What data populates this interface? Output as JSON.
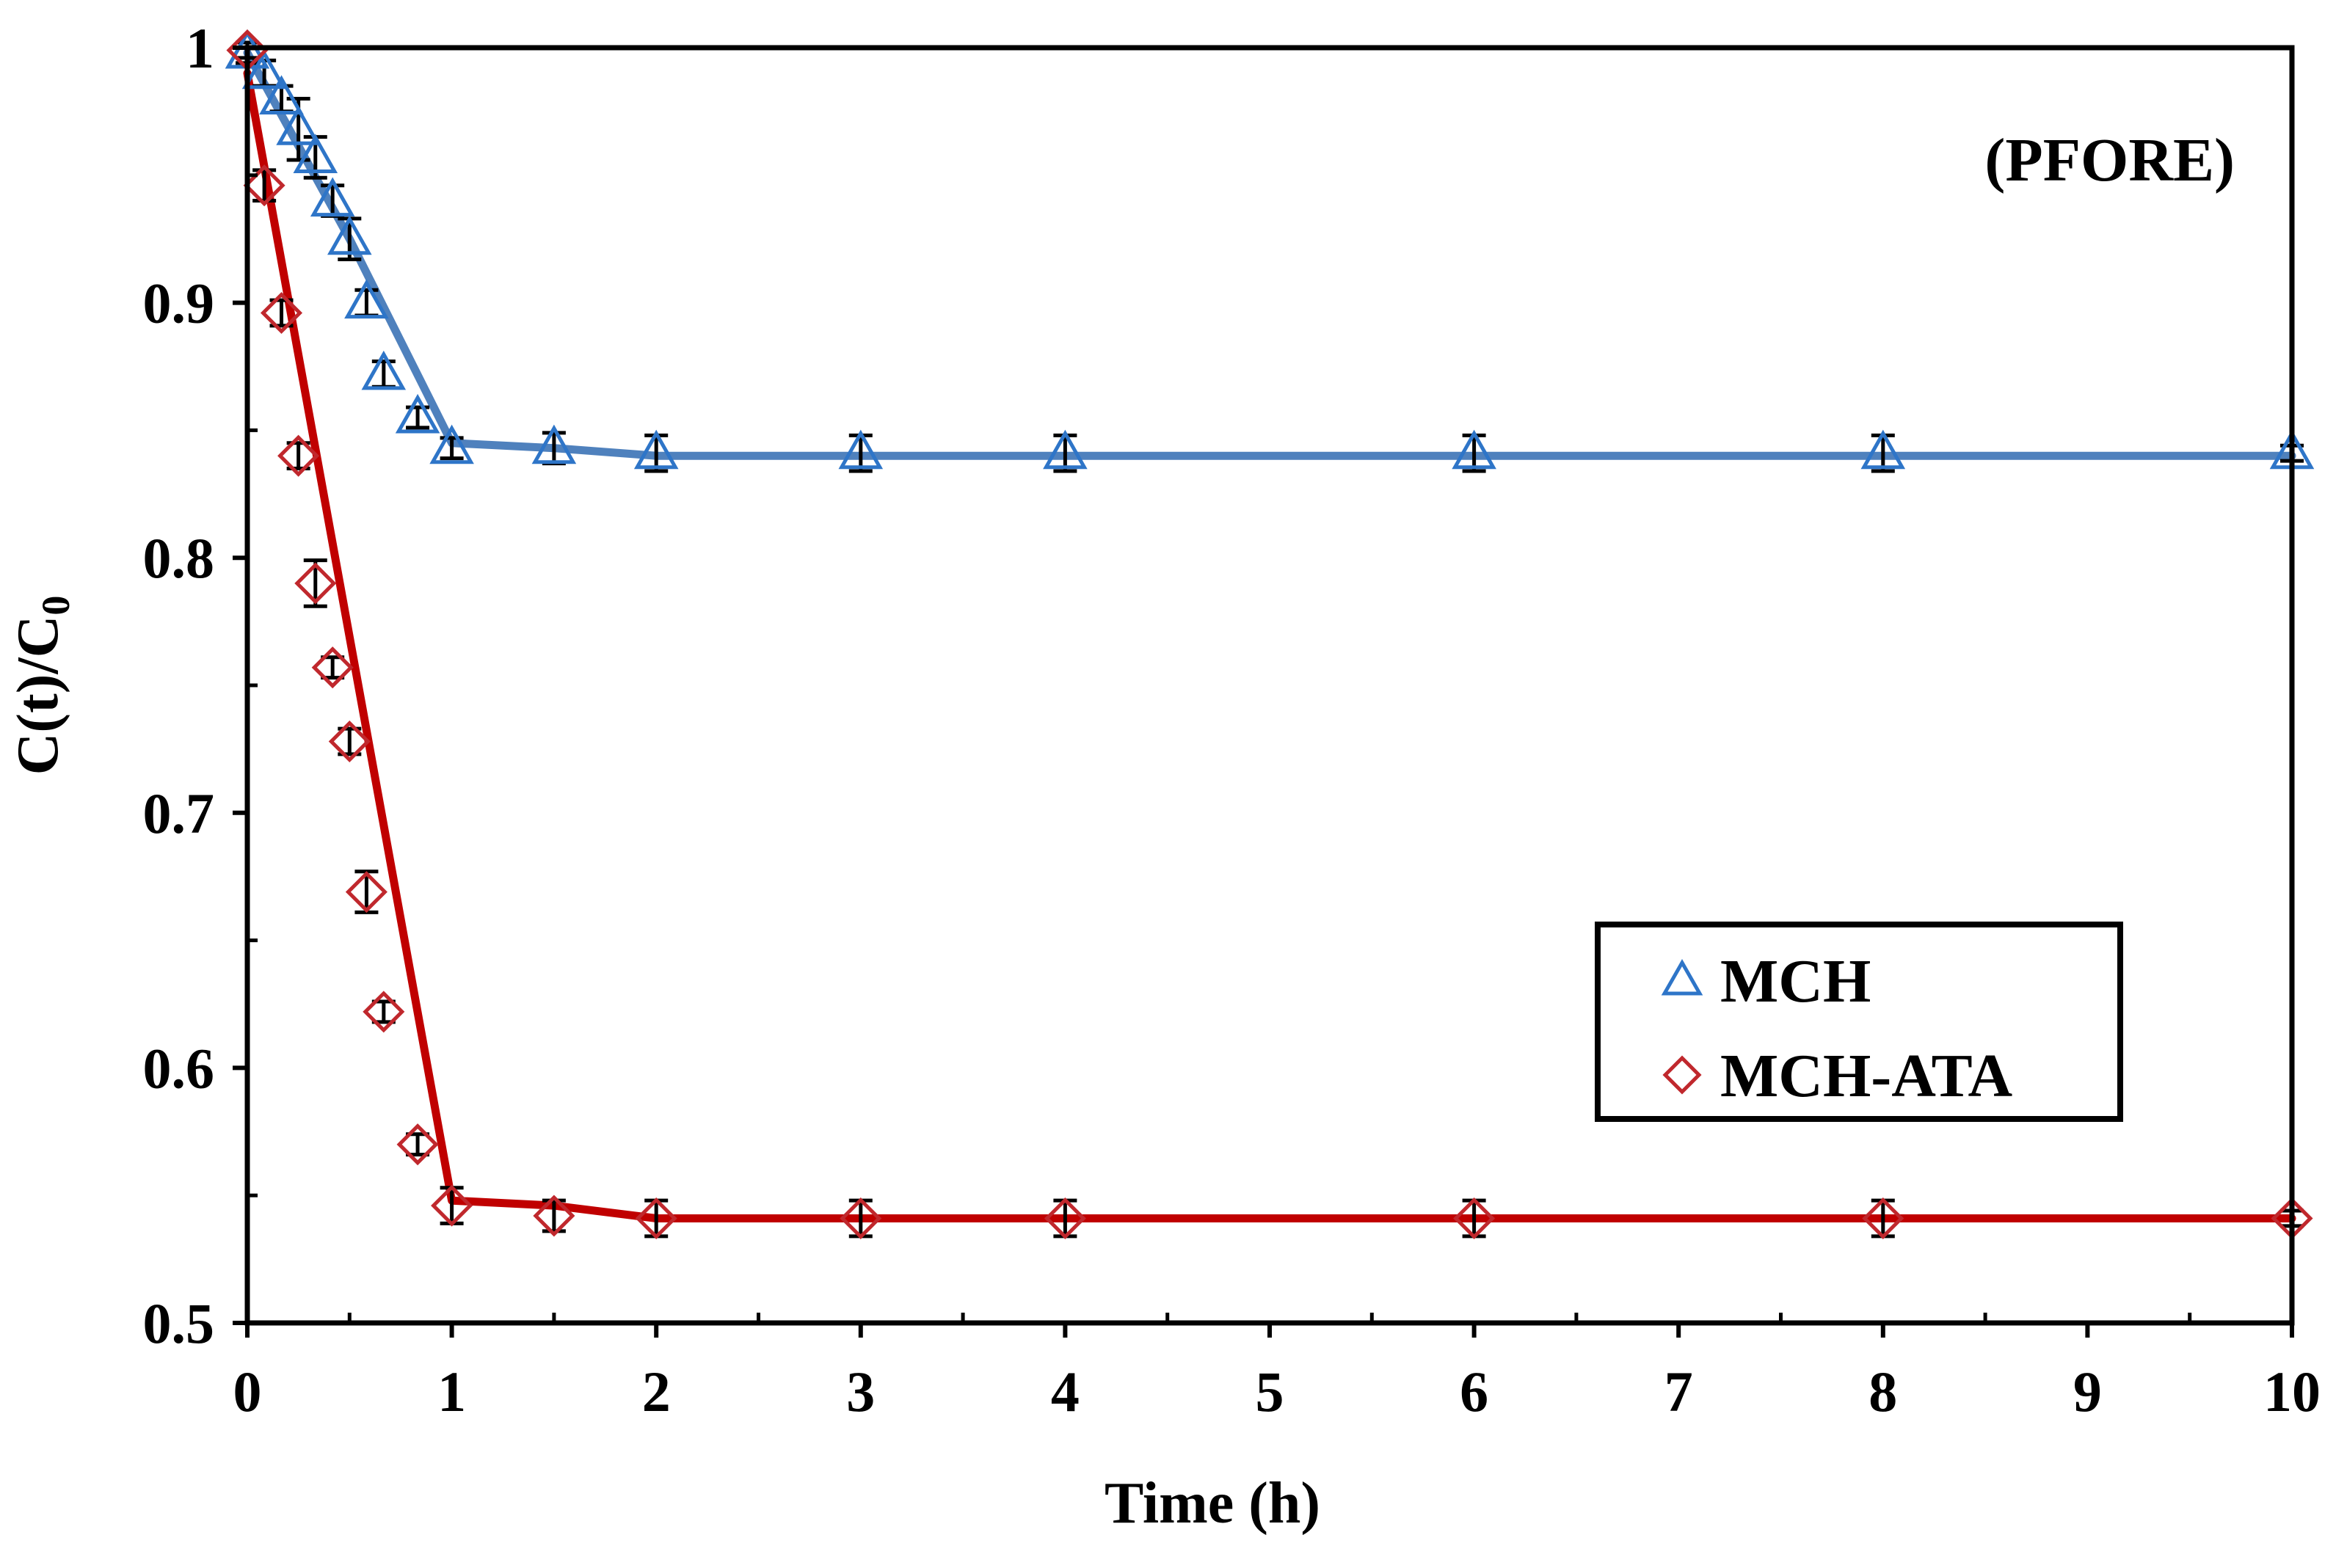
{
  "chart_data": {
    "type": "line",
    "title": "",
    "annotation": "(PFORE)",
    "xlabel": "Time (h)",
    "ylabel_main": "C(t)/C",
    "ylabel_sub": "0",
    "xlim": [
      0,
      10
    ],
    "ylim": [
      0.5,
      1
    ],
    "x_ticks": [
      0,
      1,
      2,
      3,
      4,
      5,
      6,
      7,
      8,
      9,
      10
    ],
    "x_tick_labels": [
      "0",
      "1",
      "2",
      "3",
      "4",
      "5",
      "6",
      "7",
      "8",
      "9",
      "10"
    ],
    "y_ticks": [
      0.5,
      0.6,
      0.7,
      0.8,
      0.9,
      1.0
    ],
    "y_tick_labels": [
      "0.5",
      "0.6",
      "0.7",
      "0.8",
      "0.9",
      "1"
    ],
    "grid": false,
    "legend_position": "right-middle",
    "series": [
      {
        "name": "MCH",
        "marker": "triangle",
        "color": "#2e75c8",
        "line_color": "#4f81bd",
        "x": [
          0,
          0.083,
          0.167,
          0.25,
          0.333,
          0.417,
          0.5,
          0.583,
          0.667,
          0.833,
          1,
          1.5,
          2,
          3,
          4,
          6,
          8,
          10
        ],
        "values": [
          0.998,
          0.99,
          0.98,
          0.968,
          0.957,
          0.94,
          0.925,
          0.9,
          0.872,
          0.855,
          0.843,
          0.843,
          0.841,
          0.841,
          0.841,
          0.841,
          0.841,
          0.841
        ],
        "errors": [
          0.004,
          0.005,
          0.005,
          0.012,
          0.008,
          0.006,
          0.008,
          0.005,
          0.005,
          0.004,
          0.004,
          0.006,
          0.007,
          0.007,
          0.007,
          0.007,
          0.007,
          0.003
        ],
        "fit_x": [
          0,
          0.5,
          1,
          1.5,
          2,
          3,
          4,
          6,
          8,
          10
        ],
        "fit_y": [
          0.998,
          0.925,
          0.845,
          0.843,
          0.84,
          0.84,
          0.84,
          0.84,
          0.84,
          0.84
        ]
      },
      {
        "name": "MCH-ATA",
        "marker": "diamond",
        "color": "#c0282d",
        "line_color": "#c00000",
        "x": [
          0,
          0.083,
          0.167,
          0.25,
          0.333,
          0.417,
          0.5,
          0.583,
          0.667,
          0.833,
          1,
          1.5,
          2,
          3,
          4,
          6,
          8,
          10
        ],
        "values": [
          0.999,
          0.946,
          0.896,
          0.84,
          0.79,
          0.757,
          0.728,
          0.669,
          0.622,
          0.57,
          0.546,
          0.542,
          0.541,
          0.541,
          0.541,
          0.541,
          0.541,
          0.541
        ],
        "errors": [
          0.003,
          0.006,
          0.005,
          0.005,
          0.009,
          0.004,
          0.005,
          0.008,
          0.004,
          0.004,
          0.007,
          0.006,
          0.007,
          0.007,
          0.007,
          0.007,
          0.007,
          0.003
        ],
        "fit_x": [
          0,
          1,
          1.5,
          2,
          3,
          4,
          6,
          8,
          10
        ],
        "fit_y": [
          0.99,
          0.548,
          0.546,
          0.541,
          0.541,
          0.541,
          0.541,
          0.541,
          0.541
        ]
      }
    ]
  }
}
